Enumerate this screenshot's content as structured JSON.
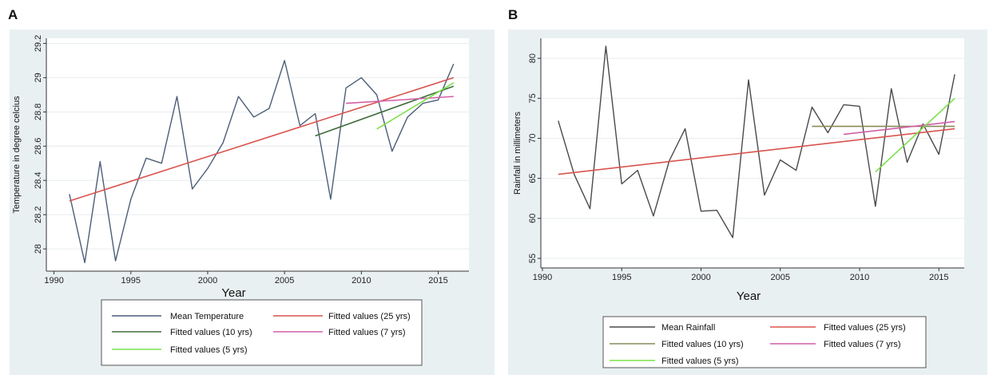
{
  "panels": [
    {
      "label": "A",
      "chart_data": {
        "type": "line",
        "title": "",
        "xlabel": "Year",
        "ylabel": "Temperature in degree celcius",
        "xlim": [
          1989.5,
          2017
        ],
        "ylim": [
          27.87,
          29.23
        ],
        "xticks": [
          1990,
          1995,
          2000,
          2005,
          2010,
          2015
        ],
        "yticks": [
          28,
          28.2,
          28.4,
          28.6,
          28.8,
          29,
          29.2
        ],
        "ytick_labels": [
          "28",
          "28.2",
          "28.4",
          "28.6",
          "28.8",
          "29",
          "29.2"
        ],
        "grid": true,
        "series": [
          {
            "name": "Mean Temperature",
            "color": "#4c5e78",
            "x": [
              1991,
              1992,
              1993,
              1994,
              1995,
              1996,
              1997,
              1998,
              1999,
              2000,
              2001,
              2002,
              2003,
              2004,
              2005,
              2006,
              2007,
              2008,
              2009,
              2010,
              2011,
              2012,
              2013,
              2014,
              2015,
              2016
            ],
            "y": [
              28.32,
              27.92,
              28.51,
              27.93,
              28.29,
              28.53,
              28.5,
              28.89,
              28.35,
              28.47,
              28.62,
              28.89,
              28.77,
              28.82,
              29.1,
              28.72,
              28.79,
              28.29,
              28.94,
              29.0,
              28.9,
              28.57,
              28.77,
              28.85,
              28.87,
              29.08
            ]
          },
          {
            "name": "Fitted values (25 yrs)",
            "color": "#d9534f",
            "x": [
              1991,
              2016
            ],
            "y": [
              28.28,
              29.0
            ]
          },
          {
            "name": "Fitted values (10 yrs)",
            "color": "#3e6b3a",
            "x": [
              2007,
              2016
            ],
            "y": [
              28.66,
              28.95
            ]
          },
          {
            "name": "Fitted values (7 yrs)",
            "color": "#d25fa8",
            "x": [
              2009,
              2016
            ],
            "y": [
              28.85,
              28.89
            ]
          },
          {
            "name": "Fitted values (5 yrs)",
            "color": "#7be04a",
            "x": [
              2011,
              2016
            ],
            "y": [
              28.7,
              28.97
            ]
          }
        ],
        "legend": {
          "position": "bottom",
          "entries": [
            "Mean Temperature",
            "Fitted values (25 yrs)",
            "Fitted values (10 yrs)",
            "Fitted values (7 yrs)",
            "Fitted values (5 yrs)"
          ]
        }
      }
    },
    {
      "label": "B",
      "chart_data": {
        "type": "line",
        "title": "",
        "xlabel": "Year",
        "ylabel": "Rainfall in millimeters",
        "xlim": [
          1989.9,
          2016.6
        ],
        "ylim": [
          53.8,
          82.5
        ],
        "xticks": [
          1990,
          1995,
          2000,
          2005,
          2010,
          2015
        ],
        "yticks": [
          55,
          60,
          65,
          70,
          75,
          80
        ],
        "ytick_labels": [
          "55",
          "60",
          "65",
          "70",
          "75",
          "80"
        ],
        "grid": true,
        "series": [
          {
            "name": "Mean Rainfall",
            "color": "#4a4a4a",
            "x": [
              1991,
              1992,
              1993,
              1994,
              1995,
              1996,
              1997,
              1998,
              1999,
              2000,
              2001,
              2002,
              2003,
              2004,
              2005,
              2006,
              2007,
              2008,
              2009,
              2010,
              2011,
              2012,
              2013,
              2014,
              2015,
              2016
            ],
            "y": [
              72.2,
              65.5,
              61.2,
              81.5,
              64.3,
              66.0,
              60.3,
              67.2,
              71.2,
              60.9,
              61.0,
              57.6,
              77.3,
              62.9,
              67.3,
              66.0,
              73.9,
              70.7,
              74.2,
              74.0,
              61.5,
              76.2,
              67.0,
              71.8,
              68.0,
              78.0
            ]
          },
          {
            "name": "Fitted values (25 yrs)",
            "color": "#d9534f",
            "x": [
              1991,
              2016
            ],
            "y": [
              65.5,
              71.2
            ]
          },
          {
            "name": "Fitted values (10 yrs)",
            "color": "#8a8a5a",
            "x": [
              2007,
              2016
            ],
            "y": [
              71.5,
              71.5
            ]
          },
          {
            "name": "Fitted values (7 yrs)",
            "color": "#d25fa8",
            "x": [
              2009,
              2016
            ],
            "y": [
              70.5,
              72.1
            ]
          },
          {
            "name": "Fitted values (5 yrs)",
            "color": "#7be04a",
            "x": [
              2011,
              2016
            ],
            "y": [
              65.8,
              75.0
            ]
          }
        ],
        "legend": {
          "position": "bottom",
          "entries": [
            "Mean Rainfall",
            "Fitted values (25 yrs)",
            "Fitted values (10 yrs)",
            "Fitted values (7 yrs)",
            "Fitted values (5 yrs)"
          ]
        }
      }
    }
  ]
}
